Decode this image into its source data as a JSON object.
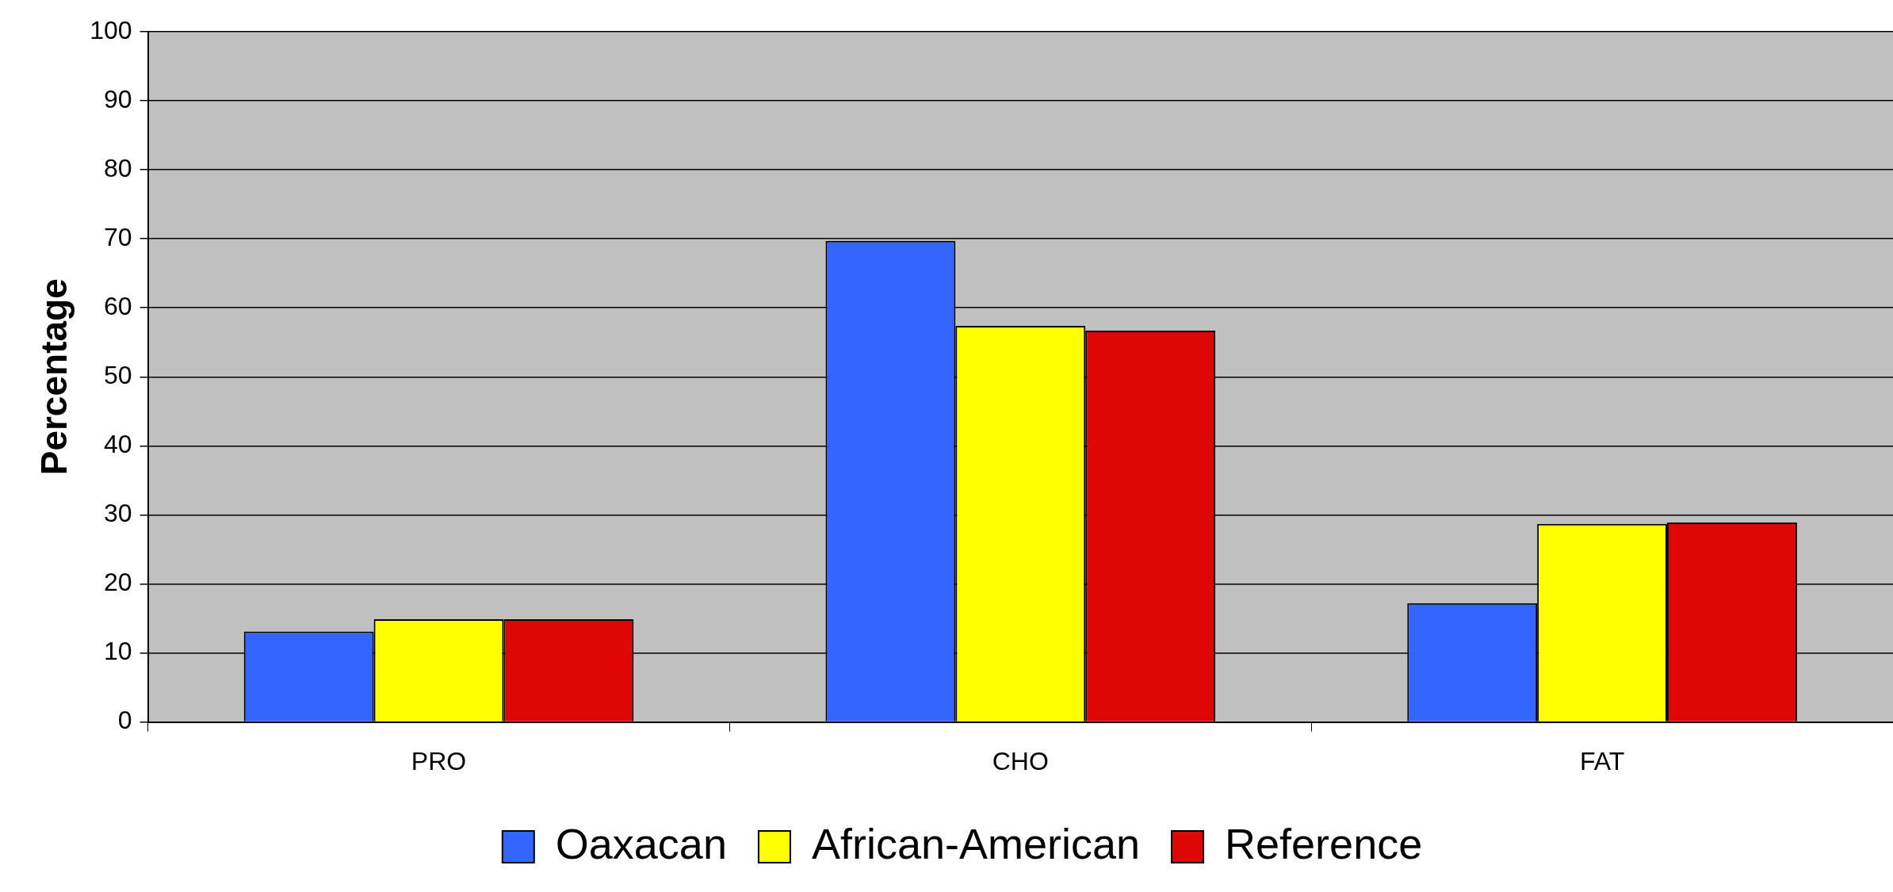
{
  "chart_data": {
    "type": "bar",
    "ylabel": "Percentage",
    "categories": [
      "PRO",
      "CHO",
      "FAT"
    ],
    "series": [
      {
        "name": "Oaxacan",
        "color": "#3366ff",
        "values": [
          13.1,
          69.7,
          17.2
        ]
      },
      {
        "name": "African-American",
        "color": "#ffff00",
        "values": [
          14.9,
          57.4,
          28.7
        ]
      },
      {
        "name": "Reference",
        "color": "#dd0806",
        "values": [
          14.9,
          56.7,
          28.9
        ]
      }
    ],
    "ylim": [
      0,
      100
    ],
    "yticks": [
      0,
      10,
      20,
      30,
      40,
      50,
      60,
      70,
      80,
      90,
      100
    ],
    "grid": "y",
    "legend": "bottom"
  }
}
